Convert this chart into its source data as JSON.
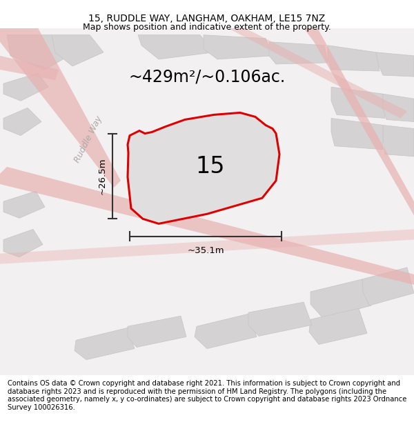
{
  "title_line1": "15, RUDDLE WAY, LANGHAM, OAKHAM, LE15 7NZ",
  "title_line2": "Map shows position and indicative extent of the property.",
  "area_text": "~429m²/~0.106ac.",
  "label_15": "15",
  "dim_width": "~35.1m",
  "dim_height": "~26.5m",
  "road_label": "Ruddle Way",
  "footer_text": "Contains OS data © Crown copyright and database right 2021. This information is subject to Crown copyright and database rights 2023 and is reproduced with the permission of HM Land Registry. The polygons (including the associated geometry, namely x, y co-ordinates) are subject to Crown copyright and database rights 2023 Ordnance Survey 100026316.",
  "map_bg": "#f2f0f0",
  "plot_fill": "#e0dede",
  "plot_stroke": "#dd0000",
  "road_color": "#e8b0b0",
  "block_fill": "#d4d2d2",
  "block_edge": "#c8c4c4",
  "title_fontsize": 10,
  "subtitle_fontsize": 9,
  "area_fontsize": 17,
  "label_fontsize": 24,
  "dim_fontsize": 9.5,
  "road_label_fontsize": 9,
  "footer_fontsize": 7.2,
  "dim_color": "#333333"
}
